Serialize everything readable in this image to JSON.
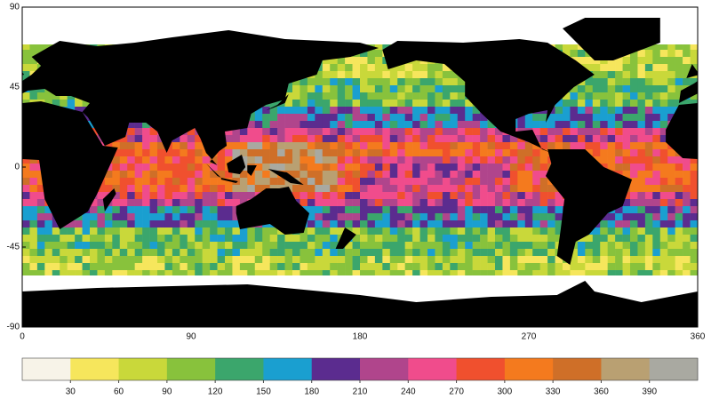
{
  "map": {
    "xlim": [
      0,
      360
    ],
    "ylim": [
      -90,
      90
    ],
    "xticks": [
      0,
      90,
      180,
      270,
      360
    ],
    "yticks": [
      90,
      45,
      0,
      -45,
      -90
    ]
  },
  "colorbar": {
    "lim": [
      0,
      420
    ],
    "colors": [
      "#f7f3e8",
      "#f6e65c",
      "#c9d83a",
      "#88c23c",
      "#3ba66c",
      "#1a9fd0",
      "#5b2c8f",
      "#b0458c",
      "#f04c8c",
      "#f0502e",
      "#f47a1e",
      "#cf6f28",
      "#b9a072",
      "#a9a9a1"
    ],
    "ticks": [
      30,
      60,
      90,
      120,
      150,
      180,
      210,
      240,
      270,
      300,
      330,
      360,
      390
    ]
  }
}
